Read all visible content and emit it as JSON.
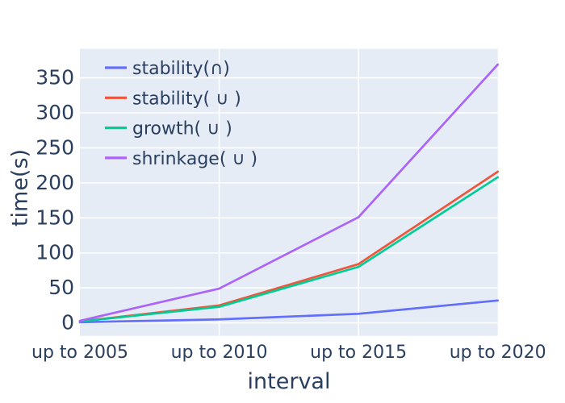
{
  "figure": {
    "background": "#ffffff",
    "plot_background": "#e5ecf6",
    "grid_color": "#ffffff",
    "text_color": "#2a3f5f"
  },
  "chart_data": {
    "type": "line",
    "title": "",
    "xlabel": "interval",
    "ylabel": "time(s)",
    "categories": [
      "up to 2005",
      "up to 2010",
      "up to 2015",
      "up to 2020"
    ],
    "series": [
      {
        "name": "stability(∩)",
        "color": "#636efa",
        "values": [
          1,
          5,
          13,
          32
        ]
      },
      {
        "name": "stability( ∪ )",
        "color": "#ef553b",
        "values": [
          2,
          25,
          84,
          216
        ]
      },
      {
        "name": "growth( ∪ )",
        "color": "#00cc96",
        "values": [
          2,
          23,
          80,
          208
        ]
      },
      {
        "name": "shrinkage( ∪ )",
        "color": "#ab63fa",
        "values": [
          3,
          49,
          151,
          369
        ]
      }
    ],
    "yticks": [
      0,
      50,
      100,
      150,
      200,
      250,
      300,
      350
    ],
    "ylim": [
      -18.5,
      391.5
    ],
    "grid": true,
    "legend_position": "top-left-inside"
  }
}
